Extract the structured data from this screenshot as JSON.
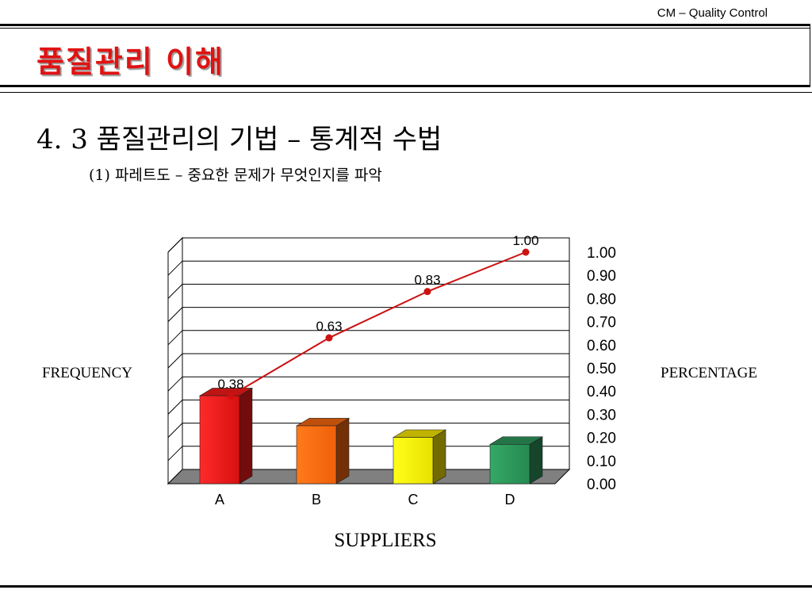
{
  "header": {
    "course_label": "CM – Quality Control",
    "title": "품질관리 이해"
  },
  "content": {
    "section_heading": "4. 3 품질관리의 기법 – 통계적 수법",
    "sub_heading": "(1) 파레트도 – 중요한 문제가 무엇인지를 파악"
  },
  "chart_data": {
    "type": "bar",
    "categories": [
      "A",
      "B",
      "C",
      "D"
    ],
    "series": [
      {
        "type": "bar",
        "values": [
          0.38,
          0.25,
          0.2,
          0.17
        ]
      },
      {
        "type": "line",
        "axis": "right",
        "values": [
          0.38,
          0.63,
          0.83,
          1.0
        ],
        "data_labels": [
          "0.38",
          "0.63",
          "0.83",
          "1.00"
        ]
      }
    ],
    "bar_colors": [
      "#ff1a1a",
      "#ff6a10",
      "#ffee00",
      "#2e9a5e"
    ],
    "line_color": "#cc1111",
    "xlabel": "SUPPLIERS",
    "ylabel_left": "FREQUENCY",
    "ylabel_right": "PERCENTAGE",
    "y_right_ticks": [
      "1.00",
      "0.90",
      "0.80",
      "0.70",
      "0.60",
      "0.50",
      "0.40",
      "0.30",
      "0.20",
      "0.10",
      "0.00"
    ],
    "y_right_range": [
      0,
      1.0
    ],
    "grid": true,
    "style": "3d"
  }
}
